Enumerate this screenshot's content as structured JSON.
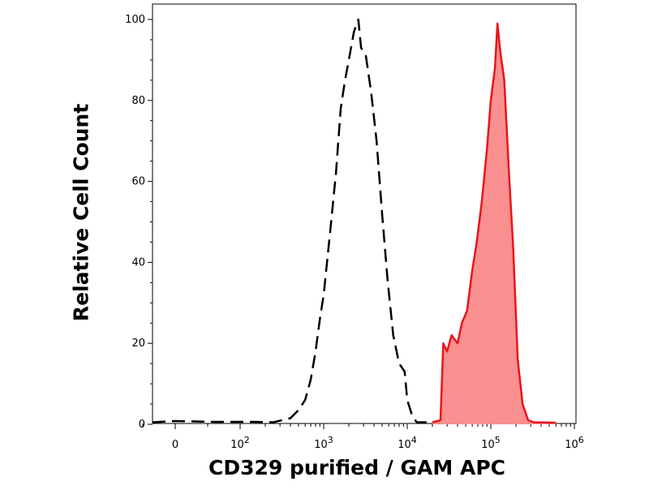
{
  "chart_data": {
    "type": "area",
    "xlabel": "CD329 purified / GAM APC",
    "ylabel": "Relative Cell Count",
    "x_scale": "biexponential",
    "ylim": [
      0,
      100
    ],
    "y_ticks": [
      {
        "value": 0,
        "label": "0"
      },
      {
        "value": 20,
        "label": "20"
      },
      {
        "value": 40,
        "label": "40"
      },
      {
        "value": 60,
        "label": "60"
      },
      {
        "value": 80,
        "label": "80"
      },
      {
        "value": 100,
        "label": "100"
      }
    ],
    "x_ticks": [
      {
        "value": 0,
        "base": "0",
        "exp": ""
      },
      {
        "value": 100,
        "base": "10",
        "exp": "2"
      },
      {
        "value": 1000,
        "base": "10",
        "exp": "3"
      },
      {
        "value": 10000,
        "base": "10",
        "exp": "4"
      },
      {
        "value": 100000,
        "base": "10",
        "exp": "5"
      },
      {
        "value": 1000000,
        "base": "10",
        "exp": "6"
      }
    ],
    "grid": false,
    "series": [
      {
        "style": "dashed-outline",
        "color": "#000000",
        "points": [
          [
            -40,
            0.5
          ],
          [
            0,
            0.8
          ],
          [
            60,
            0.6
          ],
          [
            150,
            0.6
          ],
          [
            250,
            0.5
          ],
          [
            400,
            1.5
          ],
          [
            500,
            3.5
          ],
          [
            600,
            6
          ],
          [
            700,
            11
          ],
          [
            800,
            18
          ],
          [
            900,
            26
          ],
          [
            1000,
            32
          ],
          [
            1200,
            48
          ],
          [
            1400,
            62
          ],
          [
            1600,
            78
          ],
          [
            1800,
            85
          ],
          [
            2000,
            90
          ],
          [
            2300,
            97
          ],
          [
            2600,
            100
          ],
          [
            2800,
            93
          ],
          [
            3200,
            91
          ],
          [
            3700,
            82
          ],
          [
            4300,
            70
          ],
          [
            5000,
            52
          ],
          [
            5800,
            36
          ],
          [
            6800,
            22
          ],
          [
            8000,
            15
          ],
          [
            9300,
            13
          ],
          [
            10000,
            6
          ],
          [
            11500,
            2
          ],
          [
            13000,
            0.5
          ],
          [
            20000,
            0.5
          ]
        ]
      },
      {
        "style": "filled",
        "color": "#e8151b",
        "fill": "#f98f8f",
        "points": [
          [
            20000,
            0.5
          ],
          [
            25000,
            1
          ],
          [
            27000,
            20
          ],
          [
            30000,
            18
          ],
          [
            34000,
            22
          ],
          [
            40000,
            20
          ],
          [
            45000,
            25
          ],
          [
            52000,
            28
          ],
          [
            60000,
            38
          ],
          [
            68000,
            45
          ],
          [
            78000,
            55
          ],
          [
            90000,
            68
          ],
          [
            100000,
            80
          ],
          [
            112000,
            88
          ],
          [
            120000,
            99
          ],
          [
            130000,
            92
          ],
          [
            145000,
            85
          ],
          [
            165000,
            62
          ],
          [
            185000,
            44
          ],
          [
            210000,
            16
          ],
          [
            240000,
            5
          ],
          [
            280000,
            1
          ],
          [
            330000,
            0.5
          ],
          [
            600000,
            0.4
          ]
        ]
      }
    ]
  }
}
